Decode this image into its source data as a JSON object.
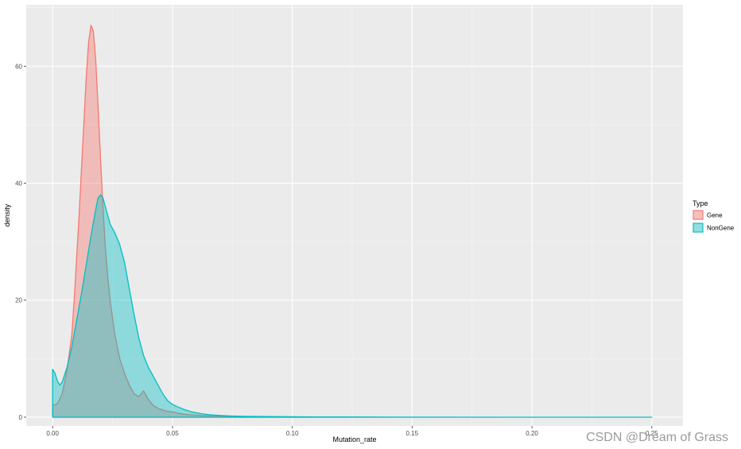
{
  "chart_data": {
    "type": "area",
    "xlabel": "Mutation_rate",
    "ylabel": "density",
    "xlim": [
      -0.011,
      0.263
    ],
    "ylim": [
      -1.5,
      70.5
    ],
    "x_ticks": [
      0.0,
      0.05,
      0.1,
      0.15,
      0.2,
      0.25
    ],
    "x_tick_labels": [
      "0.00",
      "0.05",
      "0.10",
      "0.15",
      "0.20",
      "0.25"
    ],
    "y_ticks": [
      0,
      20,
      40,
      60
    ],
    "y_tick_labels": [
      "0",
      "20",
      "40",
      "60"
    ],
    "grid": true,
    "legend": {
      "title": "Type",
      "position": "right"
    },
    "series": [
      {
        "name": "Gene",
        "line_color": "#F8766D",
        "fill_color": "#F8766D",
        "fill_opacity": 0.4,
        "x": [
          0.0,
          0.002,
          0.004,
          0.006,
          0.008,
          0.009,
          0.01,
          0.011,
          0.012,
          0.013,
          0.014,
          0.015,
          0.016,
          0.017,
          0.018,
          0.019,
          0.02,
          0.021,
          0.022,
          0.023,
          0.024,
          0.025,
          0.026,
          0.028,
          0.03,
          0.032,
          0.034,
          0.036,
          0.038,
          0.04,
          0.042,
          0.044,
          0.046,
          0.048,
          0.05,
          0.052,
          0.055,
          0.058,
          0.062,
          0.066,
          0.07,
          0.075,
          0.08,
          0.09,
          0.1,
          0.108
        ],
        "y": [
          2.0,
          2.3,
          4.0,
          8.0,
          14.0,
          20.0,
          27.0,
          34.0,
          42.0,
          50.0,
          58.0,
          64.0,
          67.0,
          66.0,
          61.0,
          53.0,
          44.0,
          36.0,
          29.0,
          24.0,
          20.0,
          17.0,
          14.0,
          10.0,
          7.5,
          5.5,
          4.0,
          3.5,
          4.5,
          3.0,
          2.0,
          1.5,
          1.2,
          1.0,
          0.9,
          0.7,
          0.5,
          0.4,
          0.3,
          0.25,
          0.2,
          0.15,
          0.1,
          0.05,
          0.02,
          0.0
        ]
      },
      {
        "name": "NonGene",
        "line_color": "#00BFC4",
        "fill_color": "#00BFC4",
        "fill_opacity": 0.4,
        "x": [
          0.0,
          0.001,
          0.002,
          0.003,
          0.004,
          0.006,
          0.008,
          0.01,
          0.012,
          0.014,
          0.016,
          0.018,
          0.019,
          0.02,
          0.021,
          0.022,
          0.023,
          0.024,
          0.026,
          0.028,
          0.03,
          0.032,
          0.034,
          0.036,
          0.038,
          0.04,
          0.042,
          0.044,
          0.046,
          0.048,
          0.05,
          0.052,
          0.055,
          0.058,
          0.062,
          0.066,
          0.07,
          0.075,
          0.08,
          0.09,
          0.1,
          0.11,
          0.12,
          0.15,
          0.2,
          0.25
        ],
        "y": [
          8.2,
          7.5,
          6.2,
          5.5,
          6.0,
          8.5,
          12.0,
          16.5,
          21.0,
          26.0,
          31.0,
          35.5,
          37.5,
          38.0,
          37.5,
          36.0,
          34.5,
          33.0,
          31.5,
          29.5,
          26.5,
          22.0,
          17.5,
          13.5,
          10.5,
          8.5,
          7.0,
          5.5,
          4.0,
          2.8,
          2.2,
          1.8,
          1.3,
          0.9,
          0.6,
          0.4,
          0.3,
          0.2,
          0.15,
          0.1,
          0.08,
          0.05,
          0.03,
          0.01,
          0.0,
          0.0
        ]
      }
    ],
    "annotations": [
      {
        "text": "CSDN @Dream of Grass",
        "role": "watermark"
      }
    ]
  }
}
